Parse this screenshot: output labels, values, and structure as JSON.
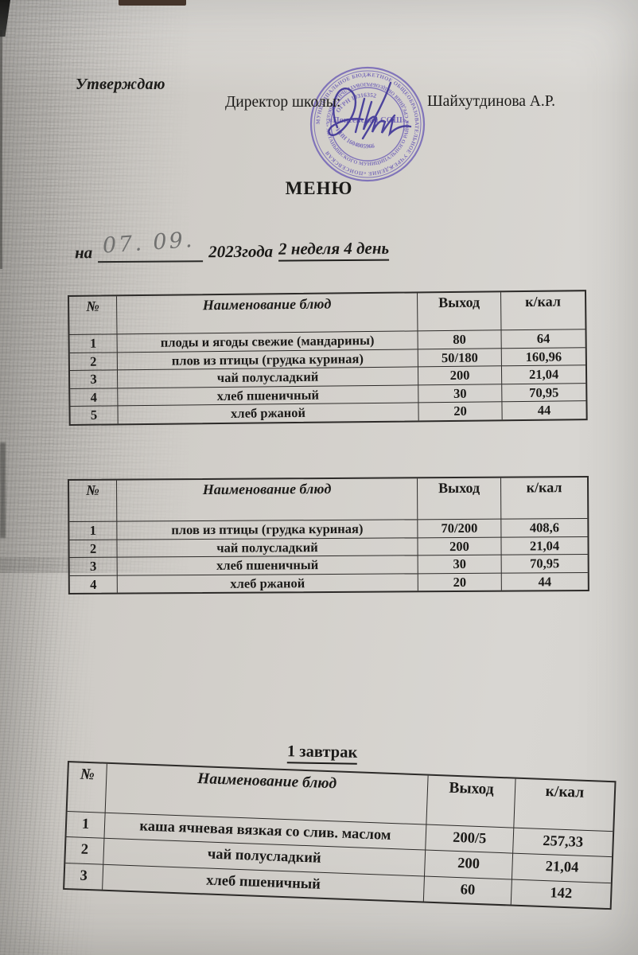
{
  "header": {
    "approve": "Утверждаю",
    "director_label": "Директор школы:",
    "director_name": "Шайхутдинова А.Р."
  },
  "title": "МЕНЮ",
  "date_line": {
    "prefix": "на",
    "handwritten_date": "07. 09.",
    "year": "2023года",
    "week_day": "2 неделя 4 день"
  },
  "stamp": {
    "ring_outer": "МУНИЦИПАЛЬНОЕ БЮДЖЕТНОЕ ОБЩЕОБРАЗОВАТЕЛЬНОЕ УЧРЕЖДЕНИЕ «ПОИСЕВСКАЯ",
    "ring_inner": "★ СРЕДНЯЯ ОБЩЕОБРАЗОВАТЕЛЬНАЯ ШКОЛА» АКТАНЫШСКОГО МУНИЦИПАЛЬНОГО РАЙОНА РЕСПУБЛИКИ ТАТАРСТАН",
    "ogrn": "ОГРН 10316352",
    "inn": "ИНН 1604005966",
    "center": "«Поисевская СОШ»",
    "ink_color": "#6c5db5",
    "signature_ink_color": "#3e3497"
  },
  "breakfast_heading": "1 завтрак",
  "tables": [
    {
      "columns": [
        "№",
        "Наименование блюд",
        "Выход",
        "к/кал"
      ],
      "rows": [
        [
          "1",
          "плоды и ягоды свежие (мандарины)",
          "80",
          "64"
        ],
        [
          "2",
          "плов из птицы (грудка куриная)",
          "50/180",
          "160,96"
        ],
        [
          "3",
          "чай полусладкий",
          "200",
          "21,04"
        ],
        [
          "4",
          "хлеб пшеничный",
          "30",
          "70,95"
        ],
        [
          "5",
          "хлеб ржаной",
          "20",
          "44"
        ]
      ]
    },
    {
      "columns": [
        "№",
        "Наименование блюд",
        "Выход",
        "к/кал"
      ],
      "rows": [
        [
          "1",
          "плов из птицы (грудка куриная)",
          "70/200",
          "408,6"
        ],
        [
          "2",
          "чай полусладкий",
          "200",
          "21,04"
        ],
        [
          "3",
          "хлеб пшеничный",
          "30",
          "70,95"
        ],
        [
          "4",
          "хлеб ржаной",
          "20",
          "44"
        ]
      ]
    },
    {
      "columns": [
        "№",
        "Наименование блюд",
        "Выход",
        "к/кал"
      ],
      "rows": [
        [
          "1",
          "каша ячневая вязкая со слив. маслом",
          "200/5",
          "257,33"
        ],
        [
          "2",
          "чай полусладкий",
          "200",
          "21,04"
        ],
        [
          "3",
          "хлеб пшеничный",
          "60",
          "142"
        ]
      ]
    }
  ]
}
